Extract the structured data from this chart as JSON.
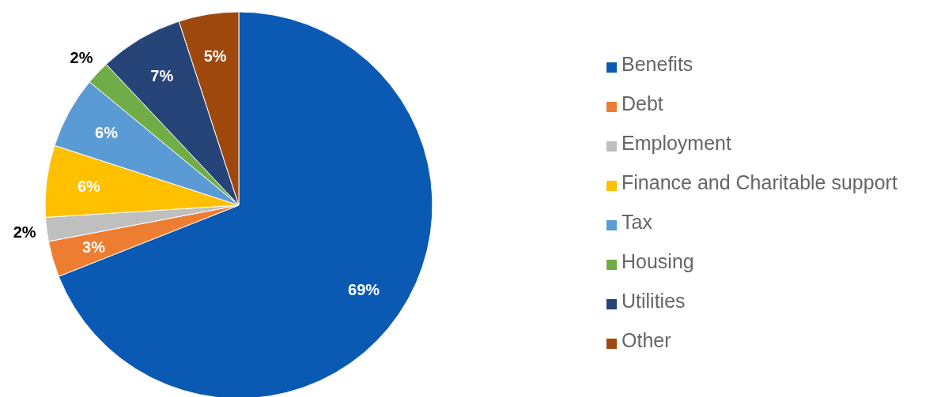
{
  "chart_data": {
    "type": "pie",
    "categories": [
      "Benefits",
      "Debt",
      "Employment",
      "Finance and Charitable support",
      "Tax",
      "Housing",
      "Utilities",
      "Other"
    ],
    "values": [
      69,
      3,
      2,
      6,
      6,
      2,
      7,
      5
    ],
    "colors": [
      "#0a5ab4",
      "#ed7d31",
      "#bfbfbf",
      "#ffc000",
      "#5b9bd5",
      "#70ad47",
      "#264478",
      "#9e480e"
    ],
    "value_labels": [
      "69%",
      "3%",
      "2%",
      "6%",
      "6%",
      "2%",
      "7%",
      "5%"
    ],
    "legend": "right"
  }
}
